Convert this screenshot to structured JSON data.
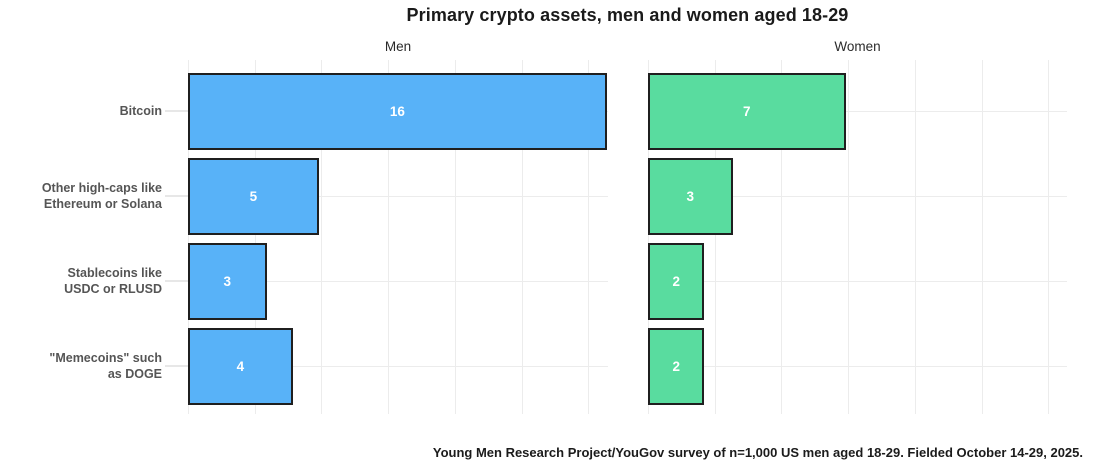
{
  "title": "Primary crypto assets, men and women aged 18-29",
  "caption": "Young Men Research Project/YouGov survey of n=1,000 US men aged 18-29. Fielded October 14-29, 2025.",
  "chart_data": {
    "type": "bar",
    "orientation": "horizontal",
    "grid": "on",
    "legend": "none",
    "categories": [
      "Bitcoin",
      "Other high-caps like\nEthereum or Solana",
      "Stablecoins like\nUSDC or RLUSD",
      "\"Memecoins\" such\nas DOGE"
    ],
    "facets": [
      {
        "label": "Men",
        "color": "#58B2F8",
        "values": [
          16,
          5,
          3,
          4
        ],
        "xmax": 16.05
      },
      {
        "label": "Women",
        "color": "#59DC9F",
        "values": [
          7,
          3,
          2,
          2
        ],
        "xmax": 14.85
      }
    ],
    "bar_border_color": "#1f1f1f",
    "gridline_color": "#ececec",
    "tick_color": "#e7e7e7",
    "value_label_color": "#ffffff",
    "axis_label_color": "#555555"
  }
}
